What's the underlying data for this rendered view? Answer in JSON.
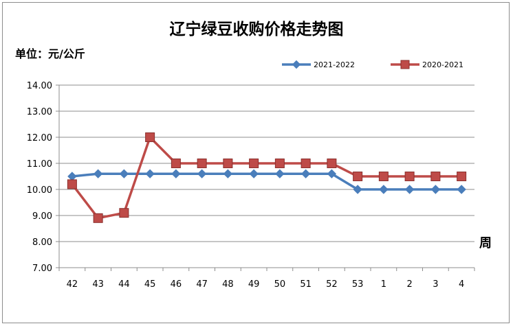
{
  "chart_data": {
    "type": "line",
    "title": "辽宁绿豆收购价格走势图",
    "ylabel": "单位：元/公斤",
    "xlabel": "周",
    "categories": [
      "42",
      "43",
      "44",
      "45",
      "46",
      "47",
      "48",
      "49",
      "50",
      "51",
      "52",
      "53",
      "1",
      "2",
      "3",
      "4"
    ],
    "ylim": [
      7.0,
      14.0
    ],
    "yticks": [
      "7.00",
      "8.00",
      "9.00",
      "10.00",
      "11.00",
      "12.00",
      "13.00",
      "14.00"
    ],
    "grid": true,
    "legend_position": "top-right",
    "series": [
      {
        "name": "2021-2022",
        "color": "#4a7ebb",
        "marker": "diamond",
        "values": [
          10.5,
          10.6,
          10.6,
          10.6,
          10.6,
          10.6,
          10.6,
          10.6,
          10.6,
          10.6,
          10.6,
          10.0,
          10.0,
          10.0,
          10.0,
          10.0
        ]
      },
      {
        "name": "2020-2021",
        "color": "#be4b48",
        "marker": "square",
        "values": [
          10.2,
          8.9,
          9.1,
          12.0,
          11.0,
          11.0,
          11.0,
          11.0,
          11.0,
          11.0,
          11.0,
          10.5,
          10.5,
          10.5,
          10.5,
          10.5
        ]
      }
    ]
  }
}
